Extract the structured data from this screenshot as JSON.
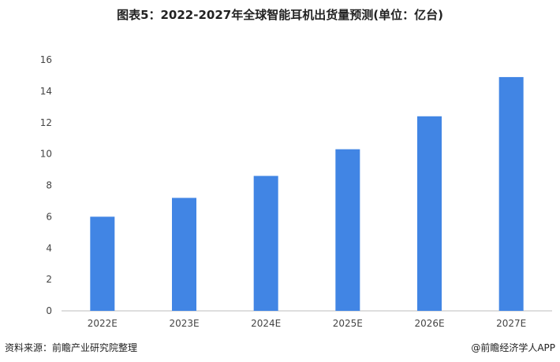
{
  "chart_data": {
    "type": "bar",
    "title": "图表5：2022-2027年全球智能耳机出货量预测(单位：亿台)",
    "categories": [
      "2022E",
      "2023E",
      "2024E",
      "2025E",
      "2026E",
      "2027E"
    ],
    "values": [
      6.0,
      7.2,
      8.6,
      10.3,
      12.4,
      14.9
    ],
    "xlabel": "",
    "ylabel": "",
    "ylim": [
      0,
      16
    ],
    "yticks": [
      0,
      2,
      4,
      6,
      8,
      10,
      12,
      14,
      16
    ],
    "grid": false,
    "bar_color": "#4185e4"
  },
  "footer": {
    "source": "资料来源：前瞻产业研究院整理",
    "brand": "@前瞻经济学人APP"
  }
}
